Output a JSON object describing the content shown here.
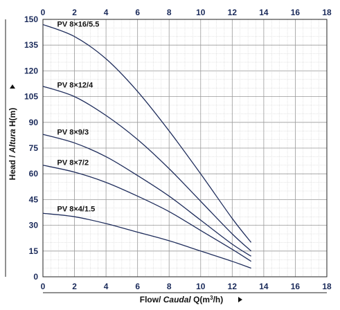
{
  "chart_data": {
    "type": "line",
    "title": "",
    "xlabel": {
      "prefix": "Flow/ ",
      "italic": "Caudal",
      "base": " Q(m",
      "sup": "3",
      "suffix": "/h)"
    },
    "ylabel": {
      "prefix": "Head / ",
      "italic": "Altura",
      "suffix": " H(m)"
    },
    "xlim": [
      0,
      18
    ],
    "ylim": [
      0,
      150
    ],
    "x_ticks": [
      0,
      2,
      4,
      6,
      8,
      10,
      12,
      14,
      16,
      18
    ],
    "y_ticks": [
      0,
      15,
      30,
      45,
      60,
      75,
      90,
      105,
      120,
      135,
      150
    ],
    "x_minor_step": 0.5,
    "y_minor_step": 5,
    "grid": true,
    "top_axis_ticks": true,
    "line_color": "#1f2d5c",
    "series": [
      {
        "name": "PV 8×16/5.5",
        "x": [
          0,
          2,
          4,
          6,
          8,
          10,
          12,
          13.2
        ],
        "y": [
          147,
          140,
          127,
          108,
          85,
          60,
          34,
          20
        ]
      },
      {
        "name": "PV 8×12/4",
        "x": [
          0,
          2,
          4,
          6,
          8,
          10,
          12,
          13.2
        ],
        "y": [
          111,
          105,
          94,
          80,
          63,
          44,
          25,
          15
        ]
      },
      {
        "name": "PV 8×9/3",
        "x": [
          0,
          2,
          4,
          6,
          8,
          10,
          12,
          13.2
        ],
        "y": [
          83,
          78,
          70,
          59,
          47,
          33,
          19,
          12
        ]
      },
      {
        "name": "PV 8×7/2",
        "x": [
          0,
          2,
          4,
          6,
          8,
          10,
          12,
          13.2
        ],
        "y": [
          65,
          61,
          55,
          47,
          38,
          27,
          16,
          9
        ]
      },
      {
        "name": "PV 8×4/1.5",
        "x": [
          0,
          2,
          4,
          6,
          8,
          10,
          12,
          13.2
        ],
        "y": [
          37,
          35,
          31,
          26,
          21,
          15,
          9,
          5
        ]
      }
    ],
    "label_positions_x": [
      0.9,
      0.9,
      0.9,
      0.9,
      0.9
    ]
  }
}
